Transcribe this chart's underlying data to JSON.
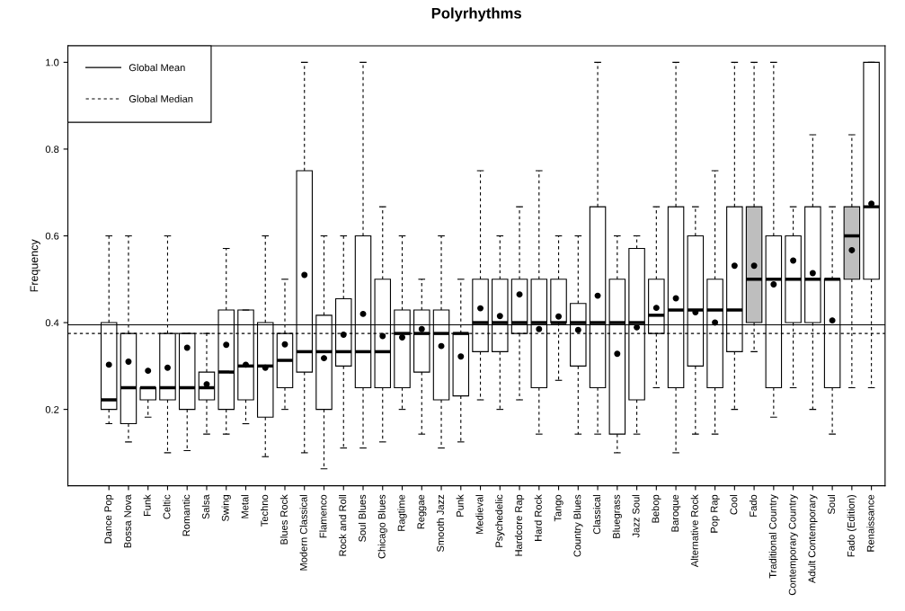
{
  "chart_data": {
    "type": "box",
    "title": "Polyrhythms",
    "ylabel": "Frequency",
    "categories": [
      "Dance Pop",
      "Bossa Nova",
      "Funk",
      "Celtic",
      "Romantic",
      "Salsa",
      "Swing",
      "Metal",
      "Techno",
      "Blues Rock",
      "Modern Classical",
      "Flamenco",
      "Rock and Roll",
      "Soul Blues",
      "Chicago Blues",
      "Ragtime",
      "Reggae",
      "Smooth Jazz",
      "Punk",
      "Medieval",
      "Psychedelic",
      "Hardcore Rap",
      "Hard Rock",
      "Tango",
      "Country Blues",
      "Classical",
      "Bluegrass",
      "Jazz Soul",
      "Bebop",
      "Baroque",
      "Alternative Rock",
      "Pop Rap",
      "Cool",
      "Fado",
      "Traditional Country",
      "Contemporary Country",
      "Adult Contemporary",
      "Soul",
      "Fado (Edition)",
      "Renaissance"
    ],
    "colors": [
      "#ffffff",
      "#ffffff",
      "#ffffff",
      "#ffffff",
      "#ffffff",
      "#ffffff",
      "#ffffff",
      "#ffffff",
      "#ffffff",
      "#ffffff",
      "#ffffff",
      "#ffffff",
      "#ffffff",
      "#ffffff",
      "#ffffff",
      "#ffffff",
      "#ffffff",
      "#ffffff",
      "#ffffff",
      "#ffffff",
      "#ffffff",
      "#ffffff",
      "#ffffff",
      "#ffffff",
      "#ffffff",
      "#ffffff",
      "#ffffff",
      "#ffffff",
      "#ffffff",
      "#ffffff",
      "#ffffff",
      "#ffffff",
      "#ffffff",
      "#bebebe",
      "#ffffff",
      "#ffffff",
      "#ffffff",
      "#ffffff",
      "#bebebe",
      "#ffffff"
    ],
    "boxes": [
      {
        "low": 0.167,
        "q1": 0.2,
        "median": 0.222,
        "q3": 0.4,
        "high": 0.6,
        "mean": 0.303
      },
      {
        "low": 0.125,
        "q1": 0.167,
        "median": 0.25,
        "q3": 0.375,
        "high": 0.6,
        "mean": 0.31
      },
      {
        "low": 0.182,
        "q1": 0.222,
        "median": 0.25,
        "q3": 0.25,
        "high": 0.25,
        "mean": 0.289
      },
      {
        "low": 0.1,
        "q1": 0.222,
        "median": 0.25,
        "q3": 0.375,
        "high": 0.6,
        "mean": 0.296
      },
      {
        "low": 0.105,
        "q1": 0.2,
        "median": 0.25,
        "q3": 0.375,
        "high": 0.375,
        "mean": 0.342
      },
      {
        "low": 0.143,
        "q1": 0.222,
        "median": 0.25,
        "q3": 0.286,
        "high": 0.375,
        "mean": 0.258
      },
      {
        "low": 0.143,
        "q1": 0.2,
        "median": 0.286,
        "q3": 0.429,
        "high": 0.571,
        "mean": 0.349
      },
      {
        "low": 0.167,
        "q1": 0.222,
        "median": 0.3,
        "q3": 0.429,
        "high": 0.429,
        "mean": 0.303
      },
      {
        "low": 0.091,
        "q1": 0.182,
        "median": 0.3,
        "q3": 0.4,
        "high": 0.6,
        "mean": 0.296
      },
      {
        "low": 0.2,
        "q1": 0.25,
        "median": 0.313,
        "q3": 0.375,
        "high": 0.5,
        "mean": 0.35
      },
      {
        "low": 0.1,
        "q1": 0.286,
        "median": 0.333,
        "q3": 0.75,
        "high": 1.0,
        "mean": 0.51
      },
      {
        "low": 0.063,
        "q1": 0.2,
        "median": 0.333,
        "q3": 0.417,
        "high": 0.6,
        "mean": 0.318
      },
      {
        "low": 0.111,
        "q1": 0.3,
        "median": 0.333,
        "q3": 0.455,
        "high": 0.6,
        "mean": 0.372
      },
      {
        "low": 0.111,
        "q1": 0.25,
        "median": 0.333,
        "q3": 0.6,
        "high": 1.0,
        "mean": 0.42
      },
      {
        "low": 0.125,
        "q1": 0.25,
        "median": 0.333,
        "q3": 0.5,
        "high": 0.667,
        "mean": 0.369
      },
      {
        "low": 0.2,
        "q1": 0.25,
        "median": 0.375,
        "q3": 0.429,
        "high": 0.6,
        "mean": 0.366
      },
      {
        "low": 0.143,
        "q1": 0.286,
        "median": 0.375,
        "q3": 0.429,
        "high": 0.5,
        "mean": 0.385
      },
      {
        "low": 0.111,
        "q1": 0.222,
        "median": 0.375,
        "q3": 0.429,
        "high": 0.6,
        "mean": 0.346
      },
      {
        "low": 0.125,
        "q1": 0.231,
        "median": 0.375,
        "q3": 0.375,
        "high": 0.5,
        "mean": 0.322
      },
      {
        "low": 0.222,
        "q1": 0.333,
        "median": 0.4,
        "q3": 0.5,
        "high": 0.75,
        "mean": 0.433
      },
      {
        "low": 0.2,
        "q1": 0.333,
        "median": 0.4,
        "q3": 0.5,
        "high": 0.6,
        "mean": 0.415
      },
      {
        "low": 0.222,
        "q1": 0.375,
        "median": 0.4,
        "q3": 0.5,
        "high": 0.667,
        "mean": 0.465
      },
      {
        "low": 0.143,
        "q1": 0.25,
        "median": 0.4,
        "q3": 0.5,
        "high": 0.75,
        "mean": 0.385
      },
      {
        "low": 0.267,
        "q1": 0.4,
        "median": 0.4,
        "q3": 0.5,
        "high": 0.6,
        "mean": 0.414
      },
      {
        "low": 0.143,
        "q1": 0.3,
        "median": 0.4,
        "q3": 0.444,
        "high": 0.6,
        "mean": 0.383
      },
      {
        "low": 0.143,
        "q1": 0.25,
        "median": 0.4,
        "q3": 0.667,
        "high": 1.0,
        "mean": 0.462
      },
      {
        "low": 0.1,
        "q1": 0.143,
        "median": 0.4,
        "q3": 0.5,
        "high": 0.6,
        "mean": 0.328
      },
      {
        "low": 0.143,
        "q1": 0.222,
        "median": 0.4,
        "q3": 0.571,
        "high": 0.6,
        "mean": 0.389
      },
      {
        "low": 0.25,
        "q1": 0.375,
        "median": 0.417,
        "q3": 0.5,
        "high": 0.667,
        "mean": 0.434
      },
      {
        "low": 0.1,
        "q1": 0.25,
        "median": 0.429,
        "q3": 0.667,
        "high": 1.0,
        "mean": 0.456
      },
      {
        "low": 0.143,
        "q1": 0.3,
        "median": 0.429,
        "q3": 0.6,
        "high": 0.667,
        "mean": 0.424
      },
      {
        "low": 0.143,
        "q1": 0.25,
        "median": 0.429,
        "q3": 0.5,
        "high": 0.75,
        "mean": 0.4
      },
      {
        "low": 0.2,
        "q1": 0.333,
        "median": 0.429,
        "q3": 0.667,
        "high": 1.0,
        "mean": 0.531
      },
      {
        "low": 0.333,
        "q1": 0.4,
        "median": 0.5,
        "q3": 0.667,
        "high": 1.0,
        "mean": 0.531
      },
      {
        "low": 0.182,
        "q1": 0.25,
        "median": 0.5,
        "q3": 0.6,
        "high": 1.0,
        "mean": 0.488
      },
      {
        "low": 0.25,
        "q1": 0.4,
        "median": 0.5,
        "q3": 0.6,
        "high": 0.667,
        "mean": 0.543
      },
      {
        "low": 0.2,
        "q1": 0.4,
        "median": 0.5,
        "q3": 0.667,
        "high": 0.833,
        "mean": 0.514
      },
      {
        "low": 0.143,
        "q1": 0.25,
        "median": 0.5,
        "q3": 0.5,
        "high": 0.667,
        "mean": 0.405
      },
      {
        "low": 0.25,
        "q1": 0.5,
        "median": 0.6,
        "q3": 0.667,
        "high": 0.833,
        "mean": 0.567
      },
      {
        "low": 0.25,
        "q1": 0.5,
        "median": 0.667,
        "q3": 1.0,
        "high": 1.0,
        "mean": 0.674
      }
    ],
    "ylim": [
      0.024,
      1.038
    ],
    "yticks": [
      0.2,
      0.4,
      0.6,
      0.8,
      {
        "value": 1,
        "label": "1.0"
      }
    ],
    "ref_lines": [
      {
        "axis": "y",
        "value": 0.395,
        "label": "Global Mean",
        "line_style": "solid",
        "color": "#000000"
      },
      {
        "axis": "y",
        "value": 0.375,
        "label": "Global Median",
        "line_style": "dashed",
        "color": "#000000"
      }
    ],
    "legend": "top left",
    "grid": false
  }
}
